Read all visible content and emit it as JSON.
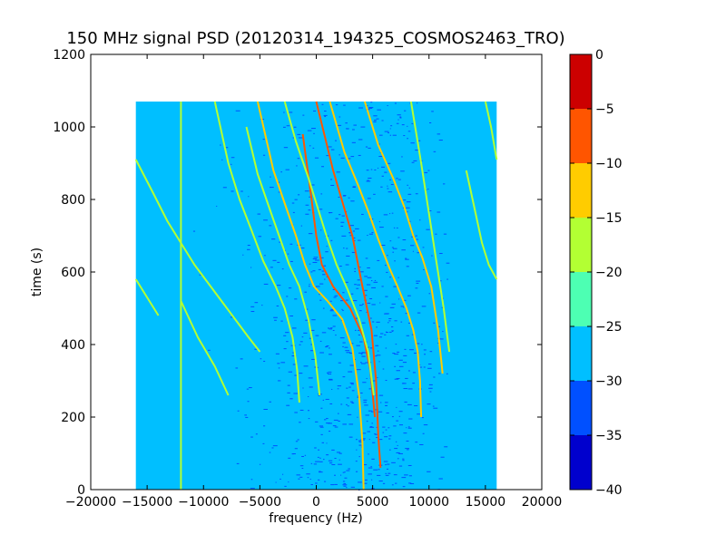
{
  "chart_data": {
    "type": "heatmap",
    "title": "150 MHz signal PSD (20120314_194325_COSMOS2463_TRO)",
    "xlabel": "frequency (Hz)",
    "ylabel": "time (s)",
    "xlim": [
      -20000,
      20000
    ],
    "ylim": [
      0,
      1200
    ],
    "xticks": [
      -20000,
      -15000,
      -10000,
      -5000,
      0,
      5000,
      10000,
      15000,
      20000
    ],
    "xtick_labels": [
      "−20000",
      "−15000",
      "−10000",
      "−5000",
      "0",
      "5000",
      "10000",
      "15000",
      "20000"
    ],
    "yticks": [
      0,
      200,
      400,
      600,
      800,
      1000,
      1200
    ],
    "ytick_labels": [
      "0",
      "200",
      "400",
      "600",
      "800",
      "1000",
      "1200"
    ],
    "data_extent": {
      "x": [
        -16000,
        16000
      ],
      "y": [
        0,
        1070
      ]
    },
    "colorbar": {
      "levels": [
        -40,
        -35,
        -30,
        -25,
        -20,
        -15,
        -10,
        -5,
        0
      ],
      "tick_labels": [
        "−40",
        "−35",
        "−30",
        "−25",
        "−20",
        "−15",
        "−10",
        "−5",
        "0"
      ],
      "colors": [
        "#0000cd",
        "#0050ff",
        "#00bfff",
        "#4dffb3",
        "#b3ff33",
        "#ffcc00",
        "#ff5500",
        "#cc0000"
      ]
    },
    "background_level_colors": {
      "floor": "#00bfff",
      "noise": "#0050ff"
    },
    "traces": [
      {
        "level": -10,
        "points": [
          [
            0,
            1070
          ],
          [
            1500,
            880
          ],
          [
            3200,
            700
          ],
          [
            4100,
            560
          ],
          [
            4900,
            440
          ],
          [
            5300,
            300
          ],
          [
            5500,
            150
          ],
          [
            5700,
            60
          ]
        ]
      },
      {
        "level": -10,
        "points": [
          [
            -1200,
            980
          ],
          [
            -500,
            820
          ],
          [
            0,
            700
          ],
          [
            500,
            620
          ],
          [
            1500,
            560
          ],
          [
            3000,
            500
          ],
          [
            4200,
            420
          ],
          [
            4800,
            330
          ],
          [
            5200,
            200
          ]
        ]
      },
      {
        "level": -15,
        "points": [
          [
            -5200,
            1070
          ],
          [
            -3800,
            880
          ],
          [
            -2700,
            780
          ],
          [
            -1800,
            700
          ],
          [
            -1000,
            620
          ],
          [
            -200,
            560
          ],
          [
            1000,
            520
          ],
          [
            2300,
            470
          ],
          [
            3200,
            390
          ],
          [
            3800,
            260
          ],
          [
            4100,
            130
          ],
          [
            4200,
            0
          ]
        ]
      },
      {
        "level": -15,
        "points": [
          [
            1200,
            1070
          ],
          [
            2500,
            930
          ],
          [
            3700,
            840
          ],
          [
            4700,
            760
          ],
          [
            5500,
            690
          ],
          [
            6500,
            610
          ],
          [
            7200,
            560
          ],
          [
            8000,
            500
          ],
          [
            8600,
            440
          ],
          [
            9000,
            380
          ],
          [
            9200,
            300
          ],
          [
            9300,
            200
          ]
        ]
      },
      {
        "level": -15,
        "points": [
          [
            4300,
            1070
          ],
          [
            5500,
            950
          ],
          [
            6800,
            860
          ],
          [
            7800,
            780
          ],
          [
            8600,
            700
          ],
          [
            9400,
            640
          ],
          [
            10200,
            560
          ],
          [
            10800,
            440
          ],
          [
            11200,
            320
          ]
        ]
      },
      {
        "level": -20,
        "points": [
          [
            -2800,
            1070
          ],
          [
            -1800,
            960
          ],
          [
            -700,
            860
          ],
          [
            100,
            780
          ],
          [
            900,
            700
          ],
          [
            1800,
            620
          ],
          [
            2800,
            550
          ],
          [
            3800,
            470
          ],
          [
            4600,
            380
          ],
          [
            5100,
            260
          ]
        ]
      },
      {
        "level": -20,
        "points": [
          [
            -6200,
            1000
          ],
          [
            -5200,
            870
          ],
          [
            -4200,
            780
          ],
          [
            -3300,
            700
          ],
          [
            -2400,
            620
          ],
          [
            -1500,
            560
          ],
          [
            -700,
            470
          ],
          [
            -100,
            370
          ],
          [
            300,
            260
          ]
        ]
      },
      {
        "level": -20,
        "points": [
          [
            -9000,
            1070
          ],
          [
            -7800,
            900
          ],
          [
            -6800,
            800
          ],
          [
            -5800,
            720
          ],
          [
            -4700,
            630
          ],
          [
            -3600,
            560
          ],
          [
            -2800,
            500
          ],
          [
            -2100,
            420
          ],
          [
            -1700,
            330
          ],
          [
            -1500,
            240
          ]
        ]
      },
      {
        "level": -20,
        "points": [
          [
            -16000,
            910
          ],
          [
            -14500,
            820
          ],
          [
            -13200,
            740
          ],
          [
            -12000,
            680
          ],
          [
            -10800,
            620
          ],
          [
            -9600,
            570
          ],
          [
            -8400,
            520
          ],
          [
            -7200,
            470
          ],
          [
            -6000,
            420
          ],
          [
            -5000,
            380
          ]
        ]
      },
      {
        "level": -20,
        "points": [
          [
            -16000,
            580
          ],
          [
            -15000,
            530
          ],
          [
            -14000,
            480
          ]
        ]
      },
      {
        "level": -20,
        "points": [
          [
            -12000,
            520
          ],
          [
            -10500,
            420
          ],
          [
            -9000,
            340
          ],
          [
            -7800,
            260
          ]
        ]
      },
      {
        "level": -20,
        "points": [
          [
            8400,
            1070
          ],
          [
            9300,
            900
          ],
          [
            10000,
            760
          ],
          [
            10700,
            620
          ],
          [
            11300,
            500
          ],
          [
            11800,
            380
          ]
        ]
      },
      {
        "level": -20,
        "points": [
          [
            13300,
            880
          ],
          [
            14000,
            780
          ],
          [
            14700,
            680
          ],
          [
            15300,
            620
          ],
          [
            16000,
            580
          ]
        ]
      },
      {
        "level": -20,
        "points": [
          [
            15000,
            1070
          ],
          [
            15500,
            1000
          ],
          [
            16000,
            910
          ]
        ]
      },
      {
        "level": -20,
        "points": [
          [
            -12000,
            1070
          ],
          [
            -12000,
            0
          ]
        ]
      }
    ]
  }
}
